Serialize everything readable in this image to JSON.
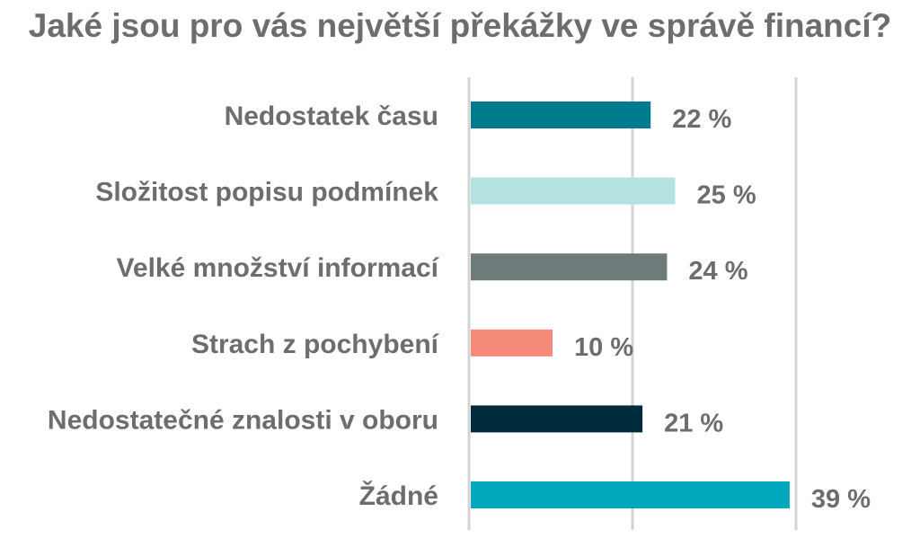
{
  "chart_data": {
    "type": "bar",
    "orientation": "horizontal",
    "title": "Jaké jsou pro vás největší překážky ve správě financí?",
    "categories": [
      "Nedostatek času",
      "Složitost popisu podmínek",
      "Velké množství informací",
      "Strach z pochybení",
      "Nedostatečné znalosti v oboru",
      "Žádné"
    ],
    "values": [
      22,
      25,
      24,
      10,
      21,
      39
    ],
    "value_labels": [
      "22 %",
      "25 %",
      "24 %",
      "10 %",
      "21 %",
      "39 %"
    ],
    "bar_colors": [
      "#007b8e",
      "#b4e2e1",
      "#6d7b7a",
      "#f58a7b",
      "#002b3b",
      "#00a8bd"
    ],
    "xlim": [
      0,
      40
    ],
    "grid": true,
    "legend": "none"
  }
}
